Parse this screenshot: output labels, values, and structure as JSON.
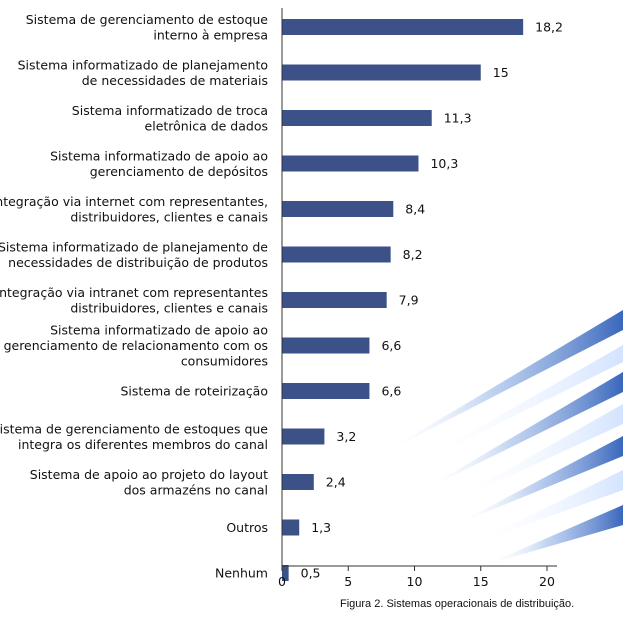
{
  "chart_data": {
    "type": "bar",
    "orientation": "horizontal",
    "categories": [
      [
        "Sistema de gerenciamento de estoque",
        "interno  à empresa"
      ],
      [
        "Sistema informatizado de planejamento",
        "de necessidades de materiais"
      ],
      [
        "Sistema informatizado de troca",
        "eletrônica de dados"
      ],
      [
        "Sistema informatizado de apoio ao",
        "gerenciamento de depósitos"
      ],
      [
        "Integração via internet com representantes,",
        "distribuidores, clientes e canais"
      ],
      [
        "Sistema informatizado de planejamento de",
        "necessidades de distribuição de produtos"
      ],
      [
        "Integração via intranet com representantes",
        "distribuidores, clientes e canais"
      ],
      [
        "Sistema informatizado de apoio ao",
        "gerenciamento de relacionamento com os",
        "consumidores"
      ],
      [
        "Sistema de roteirização"
      ],
      [
        "Sistema de gerenciamento de estoques que",
        "integra os diferentes membros do canal"
      ],
      [
        "Sistema de apoio ao projeto do layout",
        "dos armazéns no canal"
      ],
      [
        "Outros"
      ],
      [
        "Nenhum"
      ]
    ],
    "values": [
      18.2,
      15,
      11.3,
      10.3,
      8.4,
      8.2,
      7.9,
      6.6,
      6.6,
      3.2,
      2.4,
      1.3,
      0.5
    ],
    "value_labels": [
      "18,2",
      "15",
      "11,3",
      "10,3",
      "8,4",
      "8,2",
      "7,9",
      "6,6",
      "6,6",
      "3,2",
      "2,4",
      "1,3",
      "0,5"
    ],
    "x_ticks": [
      0,
      5,
      10,
      15,
      20
    ],
    "xlim": [
      0,
      20
    ],
    "grid": false,
    "colors": {
      "bar": "#3d5189",
      "axis": "#333333",
      "decoration": "#4a77c4"
    }
  },
  "caption": "Figura 2. Sistemas operacionais de distribuição."
}
